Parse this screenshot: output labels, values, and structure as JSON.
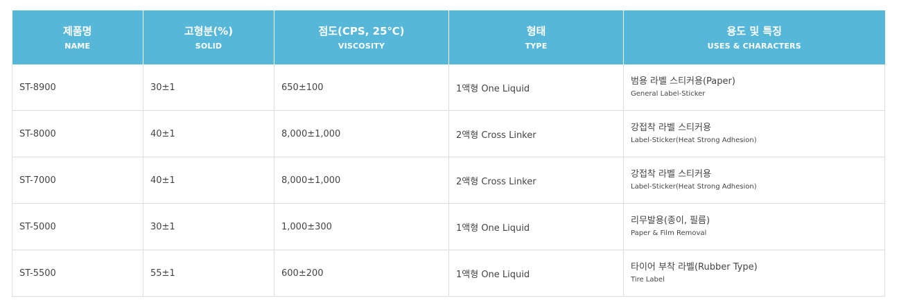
{
  "table": {
    "headers": [
      {
        "ko": "제품명",
        "en": "NAME"
      },
      {
        "ko": "고형분(%)",
        "en": "SOLID"
      },
      {
        "ko": "점도(CPS, 25℃)",
        "en": "VISCOSITY"
      },
      {
        "ko": "형태",
        "en": "TYPE"
      },
      {
        "ko": "용도 및 특징",
        "en": "USES & CHARACTERS"
      }
    ],
    "rows": [
      {
        "name": "ST-8900",
        "solid": "30±1",
        "viscosity": "650±100",
        "type": "1액형 One Liquid",
        "use_ko": "범용 라벨 스티커용(Paper)",
        "use_en": "General Label-Sticker"
      },
      {
        "name": "ST-8000",
        "solid": "40±1",
        "viscosity": "8,000±1,000",
        "type": "2액형 Cross Linker",
        "use_ko": "강접착 라벨 스티커용",
        "use_en": "Label-Sticker(Heat Strong Adhesion)"
      },
      {
        "name": "ST-7000",
        "solid": "40±1",
        "viscosity": "8,000±1,000",
        "type": "2액형 Cross Linker",
        "use_ko": "강접착 라벨 스티커용",
        "use_en": "Label-Sticker(Heat Strong Adhesion)"
      },
      {
        "name": "ST-5000",
        "solid": "30±1",
        "viscosity": "1,000±300",
        "type": "1액형 One Liquid",
        "use_ko": "리무발용(종이, 필름)",
        "use_en": "Paper & Film Removal"
      },
      {
        "name": "ST-5500",
        "solid": "55±1",
        "viscosity": "600±200",
        "type": "1액형 One Liquid",
        "use_ko": "타이어 부착 라벨(Rubber Type)",
        "use_en": "Tire Label"
      }
    ]
  },
  "colors": {
    "header_bg": "#56b7d8",
    "header_text": "#ffffff",
    "border": "#dddddd",
    "body_text": "#444444"
  }
}
